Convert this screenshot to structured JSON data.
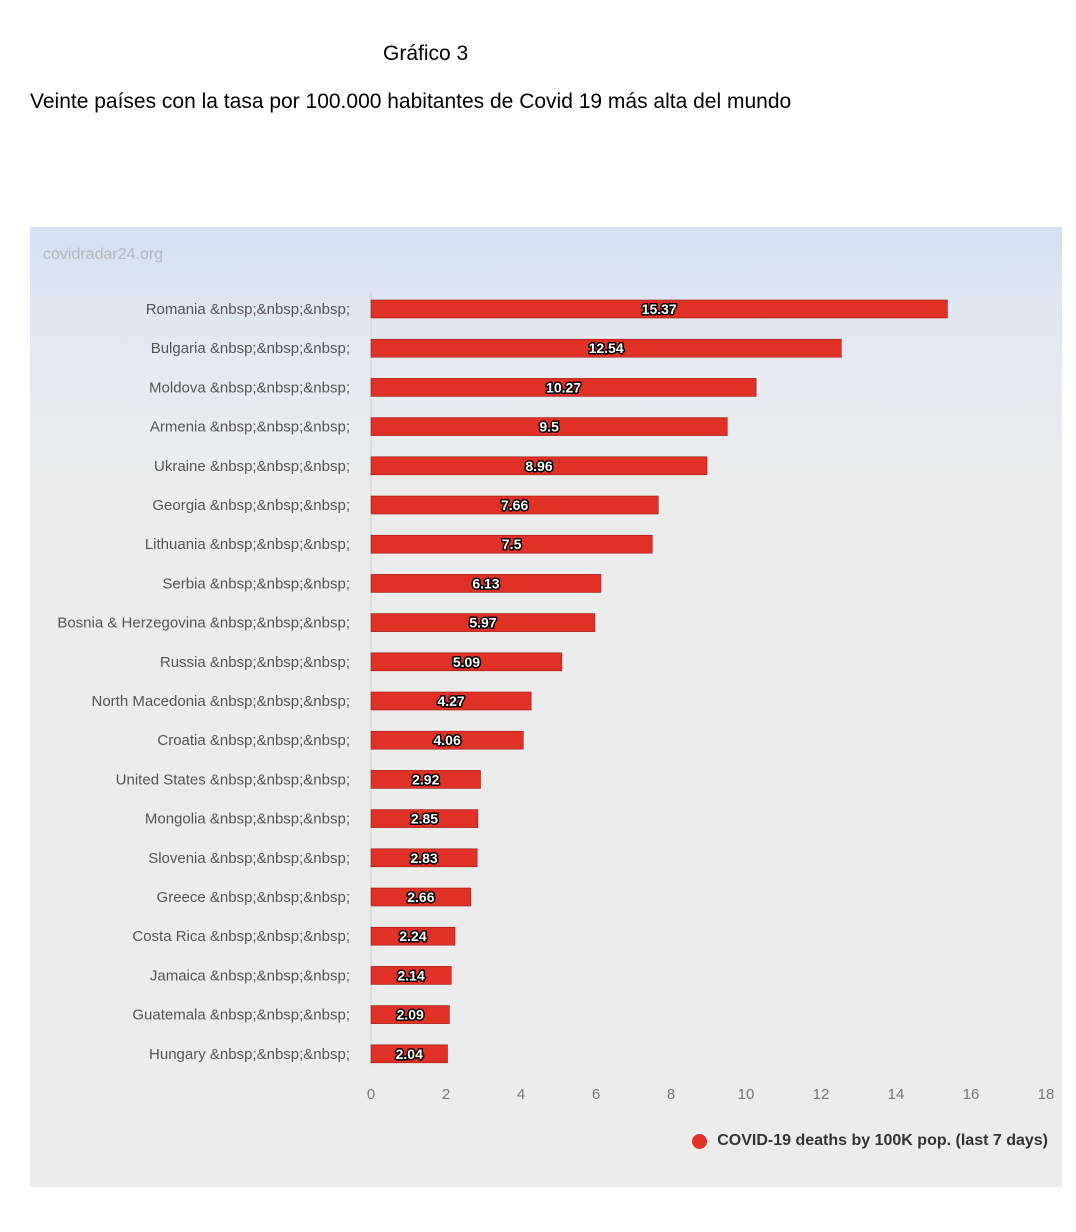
{
  "document": {
    "heading": "Gráfico 3",
    "subheading": "Veinte países con la tasa por 100.000 habitantes de Covid 19 más alta del mundo"
  },
  "watermark": "covidradar24.org",
  "chart_data": {
    "type": "bar",
    "orientation": "horizontal",
    "categories": [
      "Romania &nbsp;&nbsp;&nbsp;",
      "Bulgaria &nbsp;&nbsp;&nbsp;",
      "Moldova &nbsp;&nbsp;&nbsp;",
      "Armenia &nbsp;&nbsp;&nbsp;",
      "Ukraine &nbsp;&nbsp;&nbsp;",
      "Georgia &nbsp;&nbsp;&nbsp;",
      "Lithuania &nbsp;&nbsp;&nbsp;",
      "Serbia &nbsp;&nbsp;&nbsp;",
      "Bosnia & Herzegovina &nbsp;&nbsp;&nbsp;",
      "Russia &nbsp;&nbsp;&nbsp;",
      "North Macedonia &nbsp;&nbsp;&nbsp;",
      "Croatia &nbsp;&nbsp;&nbsp;",
      "United States &nbsp;&nbsp;&nbsp;",
      "Mongolia &nbsp;&nbsp;&nbsp;",
      "Slovenia &nbsp;&nbsp;&nbsp;",
      "Greece &nbsp;&nbsp;&nbsp;",
      "Costa Rica &nbsp;&nbsp;&nbsp;",
      "Jamaica &nbsp;&nbsp;&nbsp;",
      "Guatemala &nbsp;&nbsp;&nbsp;",
      "Hungary &nbsp;&nbsp;&nbsp;"
    ],
    "series": [
      {
        "name": "COVID-19 deaths by 100K pop. (last 7 days)",
        "values": [
          15.37,
          12.54,
          10.27,
          9.5,
          8.96,
          7.66,
          7.5,
          6.13,
          5.97,
          5.09,
          4.27,
          4.06,
          2.92,
          2.85,
          2.83,
          2.66,
          2.24,
          2.14,
          2.09,
          2.04
        ],
        "color": "#e03127"
      }
    ],
    "data_labels": [
      "15.37",
      "12.54",
      "10.27",
      "9.5",
      "8.96",
      "7.66",
      "7.5",
      "6.13",
      "5.97",
      "5.09",
      "4.27",
      "4.06",
      "2.92",
      "2.85",
      "2.83",
      "2.66",
      "2.24",
      "2.14",
      "2.09",
      "2.04"
    ],
    "x_ticks": [
      "0",
      "2",
      "4",
      "6",
      "8",
      "10",
      "12",
      "14",
      "16",
      "18"
    ],
    "xlim": [
      0,
      18
    ],
    "grid": false,
    "legend_position": "bottom-right"
  }
}
